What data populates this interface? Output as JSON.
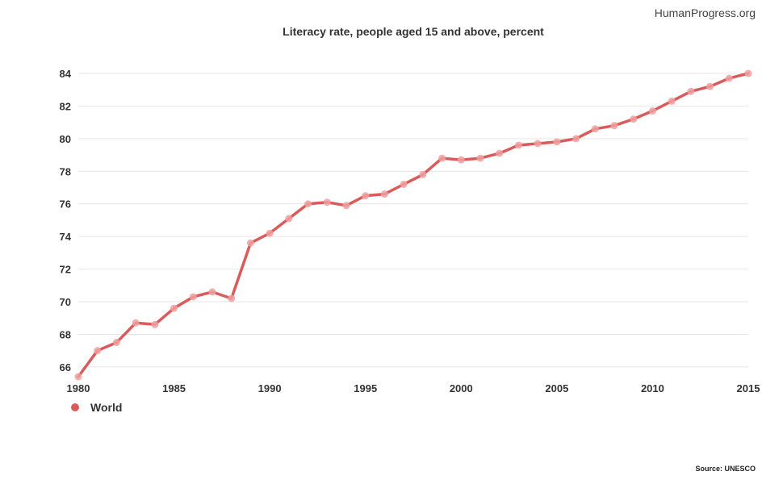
{
  "header": {
    "brand": "HumanProgress.org"
  },
  "footer": {
    "source": "Source: UNESCO"
  },
  "colors": {
    "series": "#d95b5b",
    "marker": "#f0a0a0",
    "grid": "#e6e6e6"
  },
  "chart_data": {
    "type": "line",
    "title": "Literacy rate, people aged 15 and above, percent",
    "xlabel": "",
    "ylabel": "",
    "xlim": [
      1980,
      2015
    ],
    "ylim": [
      65.4,
      84.2
    ],
    "x_ticks": [
      "1980",
      "1985",
      "1990",
      "1995",
      "2000",
      "2005",
      "2010",
      "2015"
    ],
    "y_ticks": [
      "66",
      "68",
      "70",
      "72",
      "74",
      "76",
      "78",
      "80",
      "82",
      "84"
    ],
    "legend": {
      "position": "bottom-left",
      "entries": [
        "World"
      ]
    },
    "series": [
      {
        "name": "World",
        "x": [
          1980,
          1981,
          1982,
          1983,
          1984,
          1985,
          1986,
          1987,
          1988,
          1989,
          1990,
          1991,
          1992,
          1993,
          1994,
          1995,
          1996,
          1997,
          1998,
          1999,
          2000,
          2001,
          2002,
          2003,
          2004,
          2005,
          2006,
          2007,
          2008,
          2009,
          2010,
          2011,
          2012,
          2013,
          2014,
          2015
        ],
        "values": [
          65.4,
          67.0,
          67.5,
          68.7,
          68.6,
          69.6,
          70.3,
          70.6,
          70.2,
          73.6,
          74.2,
          75.1,
          76.0,
          76.1,
          75.9,
          76.5,
          76.6,
          77.2,
          77.8,
          78.8,
          78.7,
          78.8,
          79.1,
          79.6,
          79.7,
          79.8,
          80.0,
          80.6,
          80.8,
          81.2,
          81.7,
          82.3,
          82.9,
          83.2,
          83.7,
          84.0
        ]
      }
    ]
  }
}
